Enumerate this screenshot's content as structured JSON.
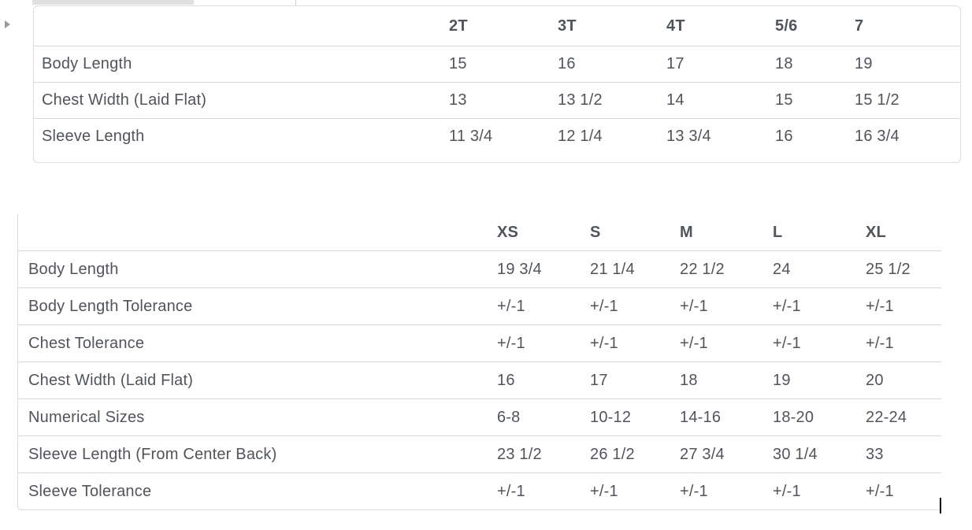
{
  "icons": {
    "expand_arrow": "right-pointing-triangle",
    "text_caret": "text-insertion-caret"
  },
  "colors": {
    "text": "#515459",
    "divider": "#d9d9d9",
    "panel_border": "#dddddd",
    "active_tab_fill": "#e0e0e0",
    "caret": "#000000"
  },
  "toddler_table": {
    "columns": [
      "2T",
      "3T",
      "4T",
      "5/6",
      "7"
    ],
    "rows": [
      {
        "label": "Body Length",
        "values": [
          "15",
          "16",
          "17",
          "18",
          "19"
        ]
      },
      {
        "label": "Chest Width (Laid Flat)",
        "values": [
          "13",
          "13 1/2",
          "14",
          "15",
          "15 1/2"
        ]
      },
      {
        "label": "Sleeve Length",
        "values": [
          "11 3/4",
          "12 1/4",
          "13 3/4",
          "16",
          "16 3/4"
        ]
      }
    ]
  },
  "adult_table": {
    "columns": [
      "XS",
      "S",
      "M",
      "L",
      "XL"
    ],
    "rows": [
      {
        "label": "Body Length",
        "values": [
          "19 3/4",
          "21 1/4",
          "22 1/2",
          "24",
          "25 1/2"
        ]
      },
      {
        "label": "Body Length Tolerance",
        "values": [
          "+/-1",
          "+/-1",
          "+/-1",
          "+/-1",
          "+/-1"
        ]
      },
      {
        "label": "Chest Tolerance",
        "values": [
          "+/-1",
          "+/-1",
          "+/-1",
          "+/-1",
          "+/-1"
        ]
      },
      {
        "label": "Chest Width (Laid Flat)",
        "values": [
          "16",
          "17",
          "18",
          "19",
          "20"
        ]
      },
      {
        "label": "Numerical Sizes",
        "values": [
          "6-8",
          "10-12",
          "14-16",
          "18-20",
          "22-24"
        ]
      },
      {
        "label": "Sleeve Length (From Center Back)",
        "values": [
          "23 1/2",
          "26 1/2",
          "27 3/4",
          "30 1/4",
          "33"
        ]
      },
      {
        "label": "Sleeve Tolerance",
        "values": [
          "+/-1",
          "+/-1",
          "+/-1",
          "+/-1",
          "+/-1"
        ]
      }
    ]
  }
}
